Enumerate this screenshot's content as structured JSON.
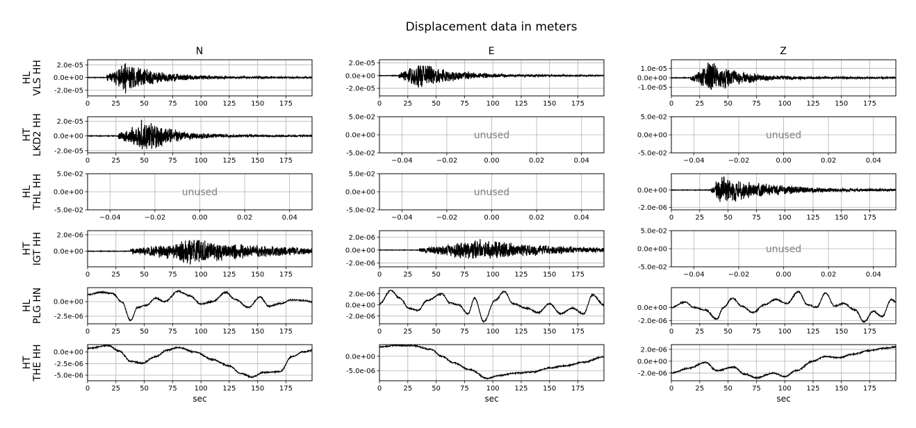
{
  "title": "Displacement data in meters",
  "columns": [
    "N",
    "E",
    "Z"
  ],
  "xlabel": "sec",
  "unused_label": "unused",
  "colors": {
    "trace": "#000000",
    "grid": "#b0b0b0",
    "unused_text": "#808080"
  },
  "rows": [
    {
      "label_line1": "HL",
      "label_line2": "VLS HH"
    },
    {
      "label_line1": "HT",
      "label_line2": "LKD2 HH"
    },
    {
      "label_line1": "HL",
      "label_line2": "THL HH"
    },
    {
      "label_line1": "HT",
      "label_line2": "IGT HH"
    },
    {
      "label_line1": "HL",
      "label_line2": "PLG HN"
    },
    {
      "label_line1": "HT",
      "label_line2": "THE HH"
    }
  ],
  "chart_data": [
    {
      "type": "line",
      "row": 0,
      "col": 0,
      "station": "HL VLS HH",
      "component": "N",
      "xlim": [
        0,
        198
      ],
      "ylim": [
        -2.9e-05,
        2.8e-05
      ],
      "xticks": [
        0,
        25,
        50,
        75,
        100,
        125,
        150,
        175
      ],
      "xticklabels": [
        "0",
        "25",
        "50",
        "75",
        "100",
        "125",
        "150",
        "175"
      ],
      "yticks": [
        2e-05,
        0,
        -2e-05
      ],
      "yticklabels": [
        "2.0e-05",
        "0.0e+00",
        "-2.0e-05"
      ],
      "signal": "quake",
      "onset": 17,
      "peak": 34,
      "amp": 2.8e-05,
      "decay": 28
    },
    {
      "type": "line",
      "row": 0,
      "col": 1,
      "station": "HL VLS HH",
      "component": "E",
      "xlim": [
        0,
        198
      ],
      "ylim": [
        -3.2e-05,
        2.5e-05
      ],
      "xticks": [
        0,
        25,
        50,
        75,
        100,
        125,
        150,
        175
      ],
      "xticklabels": [
        "0",
        "25",
        "50",
        "75",
        "100",
        "125",
        "150",
        "175"
      ],
      "yticks": [
        2e-05,
        0,
        -2e-05
      ],
      "yticklabels": [
        "2.0e-05",
        "0.0e+00",
        "-2.0e-05"
      ],
      "signal": "quake",
      "onset": 17,
      "peak": 34,
      "amp": 2.6e-05,
      "decay": 30
    },
    {
      "type": "line",
      "row": 0,
      "col": 2,
      "station": "HL VLS HH",
      "component": "Z",
      "xlim": [
        0,
        198
      ],
      "ylim": [
        -1.9e-05,
        1.9e-05
      ],
      "xticks": [
        0,
        25,
        50,
        75,
        100,
        125,
        150,
        175
      ],
      "xticklabels": [
        "0",
        "25",
        "50",
        "75",
        "100",
        "125",
        "150",
        "175"
      ],
      "yticks": [
        1e-05,
        0,
        -1e-05
      ],
      "yticklabels": [
        "1.0e-05",
        "0.0e+00",
        "-1.0e-05"
      ],
      "signal": "quake",
      "onset": 17,
      "peak": 34,
      "amp": 1.9e-05,
      "decay": 28
    },
    {
      "type": "line",
      "row": 1,
      "col": 0,
      "station": "HT LKD2 HH",
      "component": "N",
      "xlim": [
        0,
        198
      ],
      "ylim": [
        -2.3e-05,
        2.6e-05
      ],
      "xticks": [
        0,
        25,
        50,
        75,
        100,
        125,
        150,
        175
      ],
      "xticklabels": [
        "0",
        "25",
        "50",
        "75",
        "100",
        "125",
        "150",
        "175"
      ],
      "yticks": [
        2e-05,
        0,
        -2e-05
      ],
      "yticklabels": [
        "2.0e-05",
        "0.0e+00",
        "-2.0e-05"
      ],
      "signal": "quake",
      "onset": 27,
      "peak": 49,
      "amp": 2.6e-05,
      "decay": 26
    },
    {
      "type": "unused",
      "row": 1,
      "col": 1,
      "station": "HT LKD2 HH",
      "component": "E",
      "xlim": [
        -0.05,
        0.05
      ],
      "ylim": [
        -0.05,
        0.05
      ],
      "xticks": [
        -0.04,
        -0.02,
        0,
        0.02,
        0.04
      ],
      "xticklabels": [
        "−0.04",
        "−0.02",
        "0.00",
        "0.02",
        "0.04"
      ],
      "yticks": [
        0.05,
        0,
        -0.05
      ],
      "yticklabels": [
        "5.0e-02",
        "0.0e+00",
        "-5.0e-02"
      ]
    },
    {
      "type": "unused",
      "row": 1,
      "col": 2,
      "station": "HT LKD2 HH",
      "component": "Z",
      "xlim": [
        -0.05,
        0.05
      ],
      "ylim": [
        -0.05,
        0.05
      ],
      "xticks": [
        -0.04,
        -0.02,
        0,
        0.02,
        0.04
      ],
      "xticklabels": [
        "−0.04",
        "−0.02",
        "0.00",
        "0.02",
        "0.04"
      ],
      "yticks": [
        0.05,
        0,
        -0.05
      ],
      "yticklabels": [
        "5.0e-02",
        "0.0e+00",
        "-5.0e-02"
      ]
    },
    {
      "type": "unused",
      "row": 2,
      "col": 0,
      "station": "HL THL HH",
      "component": "N",
      "xlim": [
        -0.05,
        0.05
      ],
      "ylim": [
        -0.05,
        0.05
      ],
      "xticks": [
        -0.04,
        -0.02,
        0,
        0.02,
        0.04
      ],
      "xticklabels": [
        "−0.04",
        "−0.02",
        "0.00",
        "0.02",
        "0.04"
      ],
      "yticks": [
        0.05,
        0,
        -0.05
      ],
      "yticklabels": [
        "5.0e-02",
        "0.0e+00",
        "-5.0e-02"
      ]
    },
    {
      "type": "unused",
      "row": 2,
      "col": 1,
      "station": "HL THL HH",
      "component": "E",
      "xlim": [
        -0.05,
        0.05
      ],
      "ylim": [
        -0.05,
        0.05
      ],
      "xticks": [
        -0.04,
        -0.02,
        0,
        0.02,
        0.04
      ],
      "xticklabels": [
        "−0.04",
        "−0.02",
        "0.00",
        "0.02",
        "0.04"
      ],
      "yticks": [
        0.05,
        0,
        -0.05
      ],
      "yticklabels": [
        "5.0e-02",
        "0.0e+00",
        "-5.0e-02"
      ]
    },
    {
      "type": "line",
      "row": 2,
      "col": 2,
      "station": "HL THL HH",
      "component": "Z",
      "xlim": [
        0,
        198
      ],
      "ylim": [
        -2.3e-06,
        1.9e-06
      ],
      "xticks": [
        0,
        25,
        50,
        75,
        100,
        125,
        150,
        175
      ],
      "xticklabels": [
        "0",
        "25",
        "50",
        "75",
        "100",
        "125",
        "150",
        "175"
      ],
      "yticks": [
        0,
        -2e-06
      ],
      "yticklabels": [
        "0.0e+00",
        "-2.0e-06"
      ],
      "signal": "quake",
      "onset": 35,
      "peak": 42,
      "amp": 1.9e-06,
      "decay": 45
    },
    {
      "type": "line",
      "row": 3,
      "col": 0,
      "station": "HT IGT HH",
      "component": "N",
      "xlim": [
        0,
        198
      ],
      "ylim": [
        -1.9e-06,
        2.5e-06
      ],
      "xticks": [
        0,
        25,
        50,
        75,
        100,
        125,
        150,
        175
      ],
      "xticklabels": [
        "0",
        "25",
        "50",
        "75",
        "100",
        "125",
        "150",
        "175"
      ],
      "yticks": [
        2e-06,
        0
      ],
      "yticklabels": [
        "2.0e-06",
        "0.0e+00"
      ],
      "signal": "quake",
      "onset": 38,
      "peak": 90,
      "amp": 1.8e-06,
      "decay": 70
    },
    {
      "type": "line",
      "row": 3,
      "col": 1,
      "station": "HT IGT HH",
      "component": "E",
      "xlim": [
        0,
        198
      ],
      "ylim": [
        -2.6e-06,
        3e-06
      ],
      "xticks": [
        0,
        25,
        50,
        75,
        100,
        125,
        150,
        175
      ],
      "xticklabels": [
        "0",
        "25",
        "50",
        "75",
        "100",
        "125",
        "150",
        "175"
      ],
      "yticks": [
        2e-06,
        0,
        -2e-06
      ],
      "yticklabels": [
        "2.0e-06",
        "0.0e+00",
        "-2.0e-06"
      ],
      "signal": "quake",
      "onset": 35,
      "peak": 80,
      "amp": 2e-06,
      "decay": 70
    },
    {
      "type": "unused",
      "row": 3,
      "col": 2,
      "station": "HT IGT HH",
      "component": "Z",
      "xlim": [
        -0.05,
        0.05
      ],
      "ylim": [
        -0.05,
        0.05
      ],
      "xticks": [
        -0.04,
        -0.02,
        0,
        0.02,
        0.04
      ],
      "xticklabels": [
        "−0.04",
        "−0.02",
        "0.00",
        "0.02",
        "0.04"
      ],
      "yticks": [
        0.05,
        0,
        -0.05
      ],
      "yticklabels": [
        "5.0e-02",
        "0.0e+00",
        "-5.0e-02"
      ]
    },
    {
      "type": "line",
      "row": 4,
      "col": 0,
      "station": "HL PLG HN",
      "component": "N",
      "xlim": [
        0,
        198
      ],
      "ylim": [
        -3.8e-06,
        2.4e-06
      ],
      "xticks": [
        0,
        25,
        50,
        75,
        100,
        125,
        150,
        175
      ],
      "xticklabels": [
        "0",
        "25",
        "50",
        "75",
        "100",
        "125",
        "150",
        "175"
      ],
      "yticks": [
        0,
        -2.5e-06
      ],
      "yticklabels": [
        "0.0e+00",
        "-2.5e-06"
      ],
      "signal": "wander",
      "points": [
        [
          0,
          1.2e-06
        ],
        [
          12,
          1.6e-06
        ],
        [
          22,
          1.4e-06
        ],
        [
          30,
          0
        ],
        [
          38,
          -3.2e-06
        ],
        [
          44,
          -1e-06
        ],
        [
          52,
          -6e-07
        ],
        [
          60,
          6e-07
        ],
        [
          68,
          0
        ],
        [
          80,
          1.8e-06
        ],
        [
          90,
          1e-06
        ],
        [
          100,
          -4e-07
        ],
        [
          110,
          0
        ],
        [
          122,
          1.6e-06
        ],
        [
          130,
          4e-07
        ],
        [
          142,
          -1e-06
        ],
        [
          152,
          8e-07
        ],
        [
          160,
          -8e-07
        ],
        [
          170,
          -3e-07
        ],
        [
          180,
          3e-07
        ],
        [
          190,
          2e-07
        ],
        [
          198,
          0
        ]
      ]
    },
    {
      "type": "line",
      "row": 4,
      "col": 1,
      "station": "HL PLG HN",
      "component": "E",
      "xlim": [
        0,
        198
      ],
      "ylim": [
        -3.4e-06,
        3.1e-06
      ],
      "xticks": [
        0,
        25,
        50,
        75,
        100,
        125,
        150,
        175
      ],
      "xticklabels": [
        "0",
        "25",
        "50",
        "75",
        "100",
        "125",
        "150",
        "175"
      ],
      "yticks": [
        2e-06,
        0,
        -2e-06
      ],
      "yticklabels": [
        "2.0e-06",
        "0.0e+00",
        "-2.0e-06"
      ],
      "signal": "wander",
      "points": [
        [
          0,
          2e-07
        ],
        [
          10,
          2.6e-06
        ],
        [
          18,
          1.2e-06
        ],
        [
          26,
          -6e-07
        ],
        [
          34,
          -1e-06
        ],
        [
          42,
          8e-07
        ],
        [
          55,
          2e-06
        ],
        [
          62,
          4e-07
        ],
        [
          70,
          0
        ],
        [
          78,
          -1.6e-06
        ],
        [
          84,
          1.2e-06
        ],
        [
          92,
          -3e-06
        ],
        [
          102,
          8e-07
        ],
        [
          110,
          2.4e-06
        ],
        [
          118,
          2e-07
        ],
        [
          130,
          -6e-07
        ],
        [
          140,
          -1.4e-06
        ],
        [
          150,
          2e-07
        ],
        [
          160,
          -1.6e-06
        ],
        [
          170,
          -6e-07
        ],
        [
          180,
          -1.6e-06
        ],
        [
          188,
          1.8e-06
        ],
        [
          198,
          0
        ]
      ]
    },
    {
      "type": "line",
      "row": 4,
      "col": 2,
      "station": "HL PLG HN",
      "component": "Z",
      "xlim": [
        0,
        198
      ],
      "ylim": [
        -2.5e-06,
        3e-06
      ],
      "xticks": [
        0,
        25,
        50,
        75,
        100,
        125,
        150,
        175
      ],
      "xticklabels": [
        "0",
        "25",
        "50",
        "75",
        "100",
        "125",
        "150",
        "175"
      ],
      "yticks": [
        0,
        -2e-06
      ],
      "yticklabels": [
        "0.0e+00",
        "-2.0e-06"
      ],
      "signal": "wander",
      "points": [
        [
          0,
          0
        ],
        [
          12,
          8e-07
        ],
        [
          20,
          0
        ],
        [
          30,
          -4e-07
        ],
        [
          40,
          -1.8e-06
        ],
        [
          46,
          0
        ],
        [
          54,
          1.4e-06
        ],
        [
          62,
          2e-07
        ],
        [
          72,
          -8e-07
        ],
        [
          82,
          4e-07
        ],
        [
          92,
          1.2e-06
        ],
        [
          102,
          6e-07
        ],
        [
          112,
          2.4e-06
        ],
        [
          120,
          4e-07
        ],
        [
          128,
          0
        ],
        [
          136,
          2.2e-06
        ],
        [
          144,
          2e-07
        ],
        [
          152,
          6e-07
        ],
        [
          162,
          -4e-07
        ],
        [
          170,
          -2.2e-06
        ],
        [
          178,
          -6e-07
        ],
        [
          186,
          -1.4e-06
        ],
        [
          194,
          1.2e-06
        ],
        [
          198,
          8e-07
        ]
      ]
    },
    {
      "type": "line",
      "row": 5,
      "col": 0,
      "station": "HT THE HH",
      "component": "N",
      "xlim": [
        0,
        198
      ],
      "ylim": [
        -6.2e-06,
        1.6e-06
      ],
      "xticks": [
        0,
        25,
        50,
        75,
        100,
        125,
        150,
        175
      ],
      "xticklabels": [
        "0",
        "25",
        "50",
        "75",
        "100",
        "125",
        "150",
        "175"
      ],
      "yticks": [
        0,
        -2.5e-06,
        -5e-06
      ],
      "yticklabels": [
        "0.0e+00",
        "-2.5e-06",
        "-5.0e-06"
      ],
      "signal": "wander",
      "points": [
        [
          0,
          8e-07
        ],
        [
          18,
          1.4e-06
        ],
        [
          28,
          2e-07
        ],
        [
          38,
          -2e-06
        ],
        [
          48,
          -2.4e-06
        ],
        [
          60,
          -1e-06
        ],
        [
          70,
          4e-07
        ],
        [
          80,
          1e-06
        ],
        [
          95,
          0
        ],
        [
          110,
          -1.6e-06
        ],
        [
          125,
          -3e-06
        ],
        [
          135,
          -4.6e-06
        ],
        [
          145,
          -5.4e-06
        ],
        [
          155,
          -4.4e-06
        ],
        [
          170,
          -4.2e-06
        ],
        [
          180,
          -1e-06
        ],
        [
          190,
          0
        ],
        [
          198,
          4e-07
        ]
      ]
    },
    {
      "type": "line",
      "row": 5,
      "col": 1,
      "station": "HT THE HH",
      "component": "E",
      "xlim": [
        0,
        198
      ],
      "ylim": [
        -8.4e-06,
        4e-06
      ],
      "xticks": [
        0,
        25,
        50,
        75,
        100,
        125,
        150,
        175
      ],
      "xticklabels": [
        "0",
        "25",
        "50",
        "75",
        "100",
        "125",
        "150",
        "175"
      ],
      "yticks": [
        0,
        -5e-06
      ],
      "yticklabels": [
        "0.0e+00",
        "-5.0e-06"
      ],
      "signal": "wander",
      "points": [
        [
          0,
          3.2e-06
        ],
        [
          15,
          3.8e-06
        ],
        [
          30,
          3.6e-06
        ],
        [
          45,
          2.4e-06
        ],
        [
          55,
          0
        ],
        [
          65,
          -2.2e-06
        ],
        [
          80,
          -4.6e-06
        ],
        [
          95,
          -7.6e-06
        ],
        [
          105,
          -6.6e-06
        ],
        [
          120,
          -5.8e-06
        ],
        [
          135,
          -5.4e-06
        ],
        [
          150,
          -4e-06
        ],
        [
          165,
          -3.2e-06
        ],
        [
          180,
          -2e-06
        ],
        [
          198,
          -2e-07
        ]
      ]
    },
    {
      "type": "line",
      "row": 5,
      "col": 2,
      "station": "HT THE HH",
      "component": "Z",
      "xlim": [
        0,
        198
      ],
      "ylim": [
        -3.3e-06,
        2.8e-06
      ],
      "xticks": [
        0,
        25,
        50,
        75,
        100,
        125,
        150,
        175
      ],
      "xticklabels": [
        "0",
        "25",
        "50",
        "75",
        "100",
        "125",
        "150",
        "175"
      ],
      "yticks": [
        2e-06,
        0,
        -2e-06
      ],
      "yticklabels": [
        "2.0e-06",
        "0.0e+00",
        "-2.0e-06"
      ],
      "signal": "wander",
      "points": [
        [
          0,
          -2e-06
        ],
        [
          15,
          -1.2e-06
        ],
        [
          30,
          -2e-07
        ],
        [
          40,
          -1.6e-06
        ],
        [
          55,
          -1e-06
        ],
        [
          65,
          -2.2e-06
        ],
        [
          75,
          -2.8e-06
        ],
        [
          90,
          -2e-06
        ],
        [
          100,
          -2.6e-06
        ],
        [
          110,
          -1.6e-06
        ],
        [
          125,
          0
        ],
        [
          135,
          8e-07
        ],
        [
          148,
          6e-07
        ],
        [
          160,
          1.2e-06
        ],
        [
          175,
          1.8e-06
        ],
        [
          188,
          2.2e-06
        ],
        [
          198,
          2.4e-06
        ]
      ]
    }
  ]
}
